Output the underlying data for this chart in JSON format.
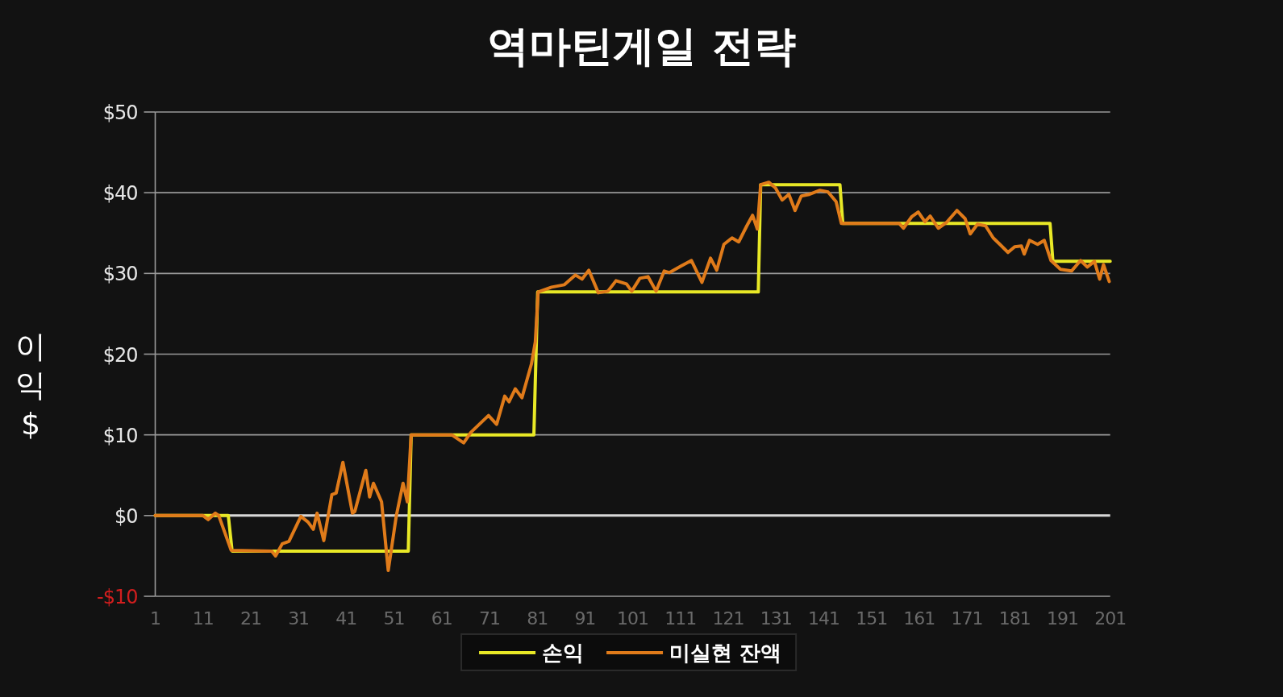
{
  "chart_data": {
    "type": "line",
    "title": "역마틴게일 전략",
    "ylabel": "이익 $",
    "xlim": [
      1,
      201
    ],
    "xticks": [
      1,
      11,
      21,
      31,
      41,
      51,
      61,
      71,
      81,
      91,
      101,
      111,
      121,
      131,
      141,
      151,
      161,
      171,
      181,
      191,
      201
    ],
    "ylim": [
      -10,
      50
    ],
    "yticks": [
      {
        "value": -10,
        "label": "-$10"
      },
      {
        "value": 0,
        "label": "$0"
      },
      {
        "value": 10,
        "label": "$10"
      },
      {
        "value": 20,
        "label": "$20"
      },
      {
        "value": 30,
        "label": "$30"
      },
      {
        "value": 40,
        "label": "$40"
      },
      {
        "value": 50,
        "label": "$50"
      }
    ],
    "grid": "y",
    "legend": "bottom",
    "marker": "none",
    "line_style": "solid",
    "series": [
      {
        "name": "손익",
        "color": "#e8e826",
        "x": [
          1,
          16.3,
          17.1,
          54,
          54.6,
          80.3,
          81.1,
          127.3,
          127.8,
          144.4,
          145,
          188.4,
          189,
          201
        ],
        "values": [
          0,
          0,
          -4.4,
          -4.4,
          10,
          10,
          27.7,
          27.7,
          41,
          41,
          36.2,
          36.2,
          31.5,
          31.5
        ]
      },
      {
        "name": "미실현 잔액",
        "color": "#e07b1a",
        "x": [
          1,
          11,
          12.1,
          13.6,
          14.3,
          16.9,
          25.4,
          26.2,
          27.6,
          29,
          31.5,
          33,
          34.1,
          34.9,
          36.3,
          38,
          38.9,
          40.3,
          42.3,
          42.8,
          45.1,
          45.9,
          46.7,
          48.4,
          49.8,
          51.5,
          52.9,
          53.8,
          54.6,
          63.1,
          65.6,
          67.1,
          70.8,
          72.5,
          74.2,
          75.1,
          76.4,
          77.8,
          79.8,
          80.6,
          81.2,
          84,
          86.7,
          89,
          90.4,
          91.8,
          93.8,
          95.8,
          97.5,
          99.7,
          100.8,
          102.5,
          104.2,
          105.9,
          107.6,
          108.7,
          111.1,
          113.3,
          115.5,
          117.3,
          118.6,
          120.1,
          121.8,
          123.2,
          124.9,
          126.1,
          127.1,
          127.8,
          129.5,
          130.9,
          132.3,
          133.7,
          135,
          136.3,
          138,
          140.2,
          141.9,
          143.6,
          144.7,
          156.8,
          157.7,
          159.4,
          160.8,
          162.2,
          163.3,
          165,
          166.7,
          168.9,
          170.6,
          171.7,
          173.2,
          174.9,
          176.5,
          177.9,
          179.6,
          181,
          182.4,
          183,
          184.1,
          185.8,
          187.2,
          188.6,
          190.6,
          192.9,
          194.8,
          196.2,
          197.7,
          198.8,
          199.6,
          200.8
        ],
        "values": [
          0,
          0,
          -0.5,
          0.3,
          0,
          -4.3,
          -4.4,
          -5,
          -3.5,
          -3.2,
          -0.1,
          -0.8,
          -1.7,
          0.3,
          -3.1,
          2.6,
          2.8,
          6.6,
          0.3,
          0.5,
          5.6,
          2.3,
          4,
          1.7,
          -6.8,
          0,
          4,
          1.7,
          10,
          10,
          9,
          10.3,
          12.4,
          11.3,
          14.8,
          14.1,
          15.7,
          14.6,
          18.8,
          21.5,
          27.7,
          28.3,
          28.6,
          29.8,
          29.3,
          30.4,
          27.6,
          27.8,
          29.1,
          28.7,
          27.8,
          29.4,
          29.6,
          27.8,
          30.3,
          30.1,
          30.9,
          31.6,
          28.9,
          31.9,
          30.4,
          33.6,
          34.4,
          33.9,
          35.9,
          37.2,
          35.5,
          41,
          41.3,
          40.6,
          39.1,
          39.8,
          37.8,
          39.6,
          39.8,
          40.3,
          40.1,
          38.9,
          36.2,
          36.2,
          35.6,
          37,
          37.6,
          36.4,
          37.1,
          35.6,
          36.3,
          37.8,
          36.8,
          34.9,
          36.1,
          35.9,
          34.4,
          33.6,
          32.6,
          33.3,
          33.4,
          32.4,
          34.1,
          33.6,
          34.1,
          31.6,
          30.5,
          30.3,
          31.6,
          30.8,
          31.5,
          29.3,
          31.1,
          29
        ]
      }
    ]
  }
}
